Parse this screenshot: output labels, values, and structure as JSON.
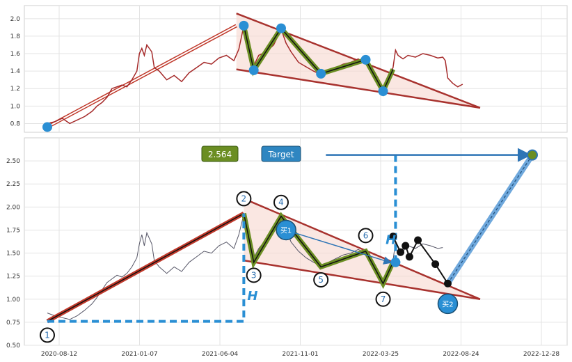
{
  "chart_data": [
    {
      "type": "line",
      "panel": "top",
      "ylim": [
        0.7,
        2.15
      ],
      "y_ticks": [
        "0.8",
        "1.0",
        "1.2",
        "1.4",
        "1.6",
        "1.8",
        "2.0"
      ],
      "grid": true,
      "price_series": [
        [
          0,
          0.8
        ],
        [
          15,
          0.82
        ],
        [
          30,
          0.86
        ],
        [
          45,
          0.8
        ],
        [
          60,
          0.84
        ],
        [
          75,
          0.88
        ],
        [
          90,
          0.94
        ],
        [
          100,
          1.0
        ],
        [
          110,
          1.04
        ],
        [
          120,
          1.1
        ],
        [
          130,
          1.2
        ],
        [
          140,
          1.22
        ],
        [
          150,
          1.24
        ],
        [
          160,
          1.22
        ],
        [
          170,
          1.3
        ],
        [
          180,
          1.4
        ],
        [
          185,
          1.6
        ],
        [
          190,
          1.66
        ],
        [
          195,
          1.58
        ],
        [
          200,
          1.7
        ],
        [
          210,
          1.62
        ],
        [
          215,
          1.44
        ],
        [
          225,
          1.4
        ],
        [
          240,
          1.3
        ],
        [
          255,
          1.35
        ],
        [
          270,
          1.28
        ],
        [
          285,
          1.38
        ],
        [
          300,
          1.44
        ],
        [
          315,
          1.5
        ],
        [
          330,
          1.48
        ],
        [
          345,
          1.55
        ],
        [
          360,
          1.58
        ],
        [
          375,
          1.52
        ],
        [
          385,
          1.65
        ],
        [
          395,
          1.92
        ],
        [
          405,
          1.72
        ],
        [
          415,
          1.46
        ],
        [
          425,
          1.58
        ],
        [
          440,
          1.62
        ],
        [
          455,
          1.7
        ],
        [
          470,
          1.88
        ],
        [
          480,
          1.72
        ],
        [
          490,
          1.62
        ],
        [
          505,
          1.5
        ],
        [
          520,
          1.45
        ],
        [
          535,
          1.4
        ],
        [
          550,
          1.36
        ],
        [
          565,
          1.4
        ],
        [
          580,
          1.44
        ],
        [
          595,
          1.48
        ],
        [
          610,
          1.5
        ],
        [
          625,
          1.54
        ],
        [
          640,
          1.48
        ],
        [
          655,
          1.42
        ],
        [
          665,
          1.32
        ],
        [
          675,
          1.21
        ],
        [
          685,
          1.32
        ],
        [
          695,
          1.44
        ],
        [
          700,
          1.64
        ],
        [
          705,
          1.58
        ],
        [
          715,
          1.54
        ],
        [
          725,
          1.58
        ],
        [
          740,
          1.56
        ],
        [
          755,
          1.6
        ],
        [
          770,
          1.58
        ],
        [
          785,
          1.55
        ],
        [
          795,
          1.56
        ],
        [
          800,
          1.52
        ],
        [
          805,
          1.32
        ],
        [
          815,
          1.26
        ],
        [
          825,
          1.22
        ],
        [
          835,
          1.25
        ]
      ],
      "markers": [
        [
          0,
          0.76
        ],
        [
          395,
          1.92
        ],
        [
          415,
          1.41
        ],
        [
          470,
          1.89
        ],
        [
          550,
          1.37
        ],
        [
          640,
          1.53
        ],
        [
          675,
          1.17
        ]
      ],
      "zigzag": [
        [
          395,
          1.92
        ],
        [
          415,
          1.41
        ],
        [
          470,
          1.89
        ],
        [
          550,
          1.37
        ],
        [
          640,
          1.53
        ],
        [
          675,
          1.17
        ],
        [
          695,
          1.42
        ]
      ],
      "upper_line": [
        [
          380,
          2.06
        ],
        [
          870,
          0.98
        ]
      ],
      "lower_line": [
        [
          380,
          1.42
        ],
        [
          870,
          0.98
        ]
      ],
      "arrow_line": [
        [
          0,
          0.76
        ],
        [
          380,
          1.92
        ]
      ]
    },
    {
      "type": "line",
      "panel": "bottom",
      "ylim": [
        0.5,
        2.75
      ],
      "y_ticks": [
        "0.50",
        "0.75",
        "1.00",
        "1.25",
        "1.50",
        "1.75",
        "2.00",
        "2.25",
        "2.50"
      ],
      "x_ticks": [
        "2020-08-12",
        "2021-01-07",
        "2021-06-04",
        "2021-11-01",
        "2022-03-25",
        "2022-08-24",
        "2022-12-28"
      ],
      "grid": true,
      "price_series": [
        [
          0,
          0.85
        ],
        [
          15,
          0.82
        ],
        [
          30,
          0.8
        ],
        [
          45,
          0.78
        ],
        [
          60,
          0.82
        ],
        [
          75,
          0.88
        ],
        [
          90,
          0.95
        ],
        [
          100,
          1.02
        ],
        [
          110,
          1.1
        ],
        [
          120,
          1.18
        ],
        [
          130,
          1.22
        ],
        [
          140,
          1.26
        ],
        [
          150,
          1.24
        ],
        [
          160,
          1.28
        ],
        [
          170,
          1.35
        ],
        [
          180,
          1.45
        ],
        [
          185,
          1.6
        ],
        [
          190,
          1.7
        ],
        [
          195,
          1.58
        ],
        [
          200,
          1.72
        ],
        [
          210,
          1.6
        ],
        [
          215,
          1.42
        ],
        [
          225,
          1.35
        ],
        [
          240,
          1.28
        ],
        [
          255,
          1.35
        ],
        [
          270,
          1.3
        ],
        [
          285,
          1.4
        ],
        [
          300,
          1.46
        ],
        [
          315,
          1.52
        ],
        [
          330,
          1.5
        ],
        [
          345,
          1.58
        ],
        [
          360,
          1.62
        ],
        [
          375,
          1.55
        ],
        [
          385,
          1.7
        ],
        [
          395,
          1.92
        ],
        [
          405,
          1.7
        ],
        [
          415,
          1.45
        ],
        [
          425,
          1.55
        ],
        [
          440,
          1.65
        ],
        [
          455,
          1.75
        ],
        [
          470,
          1.9
        ],
        [
          480,
          1.75
        ],
        [
          490,
          1.62
        ],
        [
          505,
          1.52
        ],
        [
          520,
          1.45
        ],
        [
          535,
          1.4
        ],
        [
          550,
          1.36
        ],
        [
          565,
          1.4
        ],
        [
          580,
          1.44
        ],
        [
          595,
          1.48
        ],
        [
          610,
          1.5
        ],
        [
          625,
          1.54
        ],
        [
          640,
          1.5
        ],
        [
          655,
          1.4
        ],
        [
          665,
          1.3
        ],
        [
          675,
          1.18
        ],
        [
          685,
          1.3
        ],
        [
          695,
          1.42
        ],
        [
          700,
          1.62
        ],
        [
          705,
          1.56
        ],
        [
          715,
          1.52
        ],
        [
          725,
          1.58
        ],
        [
          740,
          1.55
        ],
        [
          755,
          1.6
        ],
        [
          770,
          1.58
        ],
        [
          785,
          1.55
        ],
        [
          795,
          1.56
        ]
      ],
      "trend_line": [
        [
          0,
          0.76
        ],
        [
          395,
          1.93
        ]
      ],
      "zigzag": [
        [
          395,
          1.93
        ],
        [
          415,
          1.4
        ],
        [
          470,
          1.9
        ],
        [
          550,
          1.35
        ],
        [
          640,
          1.52
        ],
        [
          675,
          1.17
        ],
        [
          695,
          1.4
        ]
      ],
      "upper_line": [
        [
          395,
          2.09
        ],
        [
          870,
          1.0
        ]
      ],
      "lower_line": [
        [
          395,
          1.42
        ],
        [
          870,
          1.0
        ]
      ],
      "numbered_points": [
        {
          "label": "1",
          "x": 0,
          "y": 0.61
        },
        {
          "label": "2",
          "x": 395,
          "y": 2.09
        },
        {
          "label": "3",
          "x": 415,
          "y": 1.26
        },
        {
          "label": "4",
          "x": 470,
          "y": 2.05
        },
        {
          "label": "5",
          "x": 550,
          "y": 1.21
        },
        {
          "label": "6",
          "x": 640,
          "y": 1.69
        },
        {
          "label": "7",
          "x": 675,
          "y": 1.0
        }
      ],
      "black_path": [
        [
          695,
          1.68
        ],
        [
          710,
          1.51
        ],
        [
          720,
          1.58
        ],
        [
          728,
          1.46
        ],
        [
          745,
          1.64
        ],
        [
          780,
          1.38
        ],
        [
          805,
          1.17
        ]
      ],
      "buy_points": [
        {
          "label": "买1",
          "x": 480,
          "y": 1.75
        },
        {
          "label": "买2",
          "x": 805,
          "y": 0.95
        }
      ],
      "H_labels": [
        {
          "label": "H",
          "x": 402,
          "y": 0.99
        },
        {
          "label": "H",
          "x": 680,
          "y": 1.6
        }
      ],
      "target_label": "Target",
      "target_value": "2.564",
      "target_point": [
        975,
        2.564
      ],
      "target_arrow": [
        [
          805,
          1.17
        ],
        [
          975,
          2.564
        ]
      ]
    }
  ]
}
